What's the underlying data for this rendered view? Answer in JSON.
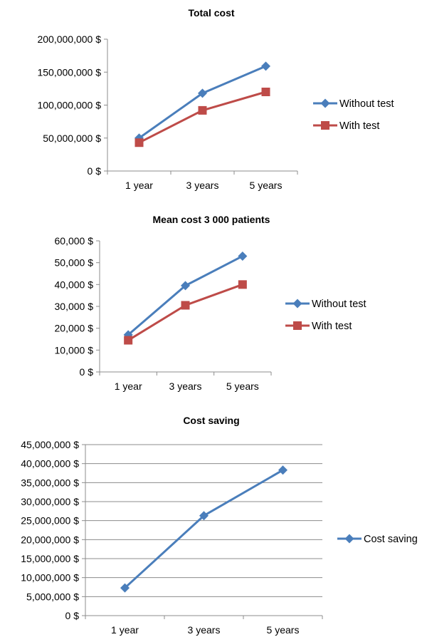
{
  "chart_data": [
    {
      "type": "line",
      "title": "Total cost",
      "xlabel": "",
      "ylabel": "",
      "categories": [
        "1 year",
        "3 years",
        "5 years"
      ],
      "ylim": [
        0,
        200000000
      ],
      "yticks": [
        "0 $",
        "50,000,000 $",
        "100,000,000 $",
        "150,000,000 $",
        "200,000,000 $"
      ],
      "grid": false,
      "legend_position": "right",
      "series": [
        {
          "name": "Without test",
          "values": [
            50000000,
            118000000,
            159000000
          ],
          "color": "#4a7ebb",
          "marker": "diamond"
        },
        {
          "name": "With test",
          "values": [
            43000000,
            92000000,
            120000000
          ],
          "color": "#be4b48",
          "marker": "square"
        }
      ]
    },
    {
      "type": "line",
      "title": "Mean cost 3 000 patients",
      "xlabel": "",
      "ylabel": "",
      "categories": [
        "1 year",
        "3 years",
        "5 years"
      ],
      "ylim": [
        0,
        60000
      ],
      "yticks": [
        "0 $",
        "10,000 $",
        "20,000 $",
        "30,000 $",
        "40,000 $",
        "50,000 $",
        "60,000 $"
      ],
      "grid": false,
      "legend_position": "right",
      "series": [
        {
          "name": "Without test",
          "values": [
            17000,
            39500,
            53000
          ],
          "color": "#4a7ebb",
          "marker": "diamond"
        },
        {
          "name": "With test",
          "values": [
            14500,
            30500,
            40000
          ],
          "color": "#be4b48",
          "marker": "square"
        }
      ]
    },
    {
      "type": "line",
      "title": "Cost saving",
      "xlabel": "",
      "ylabel": "",
      "categories": [
        "1 year",
        "3 years",
        "5 years"
      ],
      "ylim": [
        0,
        45000000
      ],
      "yticks": [
        "0 $",
        "5,000,000 $",
        "10,000,000 $",
        "15,000,000 $",
        "20,000,000 $",
        "25,000,000 $",
        "30,000,000 $",
        "35,000,000 $",
        "40,000,000 $",
        "45,000,000 $"
      ],
      "grid": true,
      "legend_position": "right",
      "series": [
        {
          "name": "Cost saving",
          "values": [
            7300000,
            26300000,
            38300000
          ],
          "color": "#4a7ebb",
          "marker": "diamond"
        }
      ]
    }
  ]
}
